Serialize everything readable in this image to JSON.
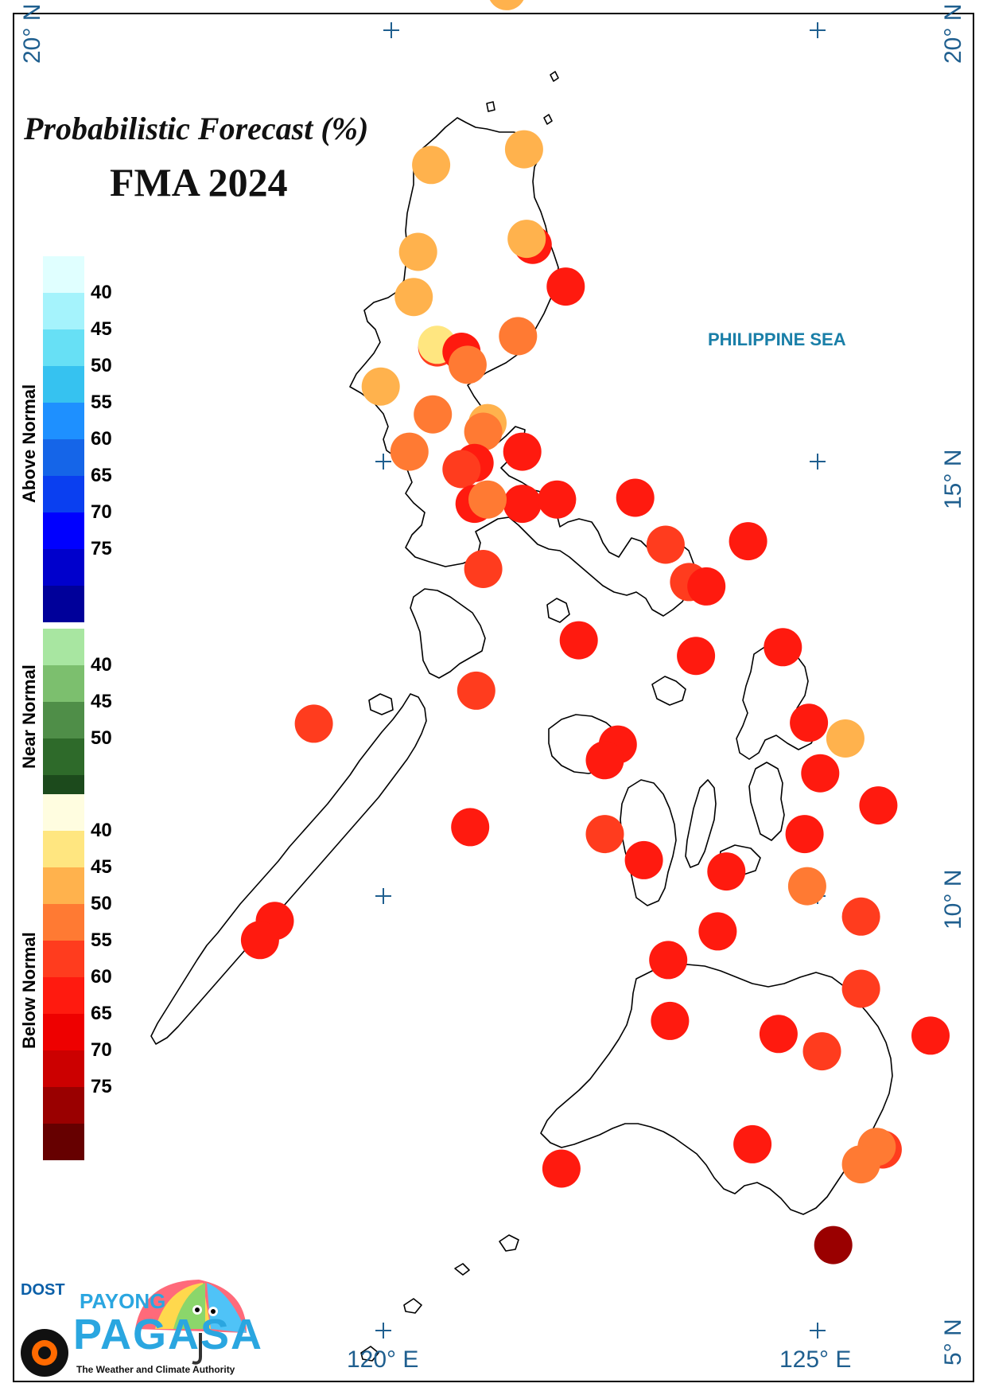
{
  "title": {
    "line1": "Probabilistic Forecast (%)",
    "line2": "FMA 2024"
  },
  "sea_label": "PHILIPPINE SEA",
  "coordinates": {
    "lat_20_left": "20° N",
    "lat_20_right": "20° N",
    "lat_15_right": "15° N",
    "lat_10_right": "10° N",
    "lat_5_right": "5° N",
    "lon_120": "120° E",
    "lon_125": "125° E"
  },
  "legend": {
    "above_normal": {
      "label": "Above Normal",
      "colors": [
        "#e0ffff",
        "#a5f3fc",
        "#67e0f5",
        "#36c2f0",
        "#1e90ff",
        "#1565e8",
        "#0a3ff0",
        "#0000ff",
        "#0000cc",
        "#00009a"
      ],
      "values": [
        "40",
        "45",
        "50",
        "55",
        "60",
        "65",
        "70",
        "75"
      ]
    },
    "near_normal": {
      "label": "Near Normal",
      "colors": [
        "#a8e6a1",
        "#7cbf6e",
        "#4f8e48",
        "#2e6a2a",
        "#1c4a1c"
      ],
      "values": [
        "40",
        "45",
        "50"
      ]
    },
    "below_normal": {
      "label": "Below Normal",
      "colors": [
        "#fffde0",
        "#ffe680",
        "#ffb24d",
        "#ff7a33",
        "#ff3c1e",
        "#ff1a0f",
        "#ee0000",
        "#cc0000",
        "#9a0000",
        "#660000"
      ],
      "values": [
        "40",
        "45",
        "50",
        "55",
        "60",
        "65",
        "70",
        "75"
      ]
    }
  },
  "stations": [
    {
      "lon": 121.42,
      "lat": 20.45,
      "color": "#ffb24d"
    },
    {
      "lon": 121.62,
      "lat": 18.63,
      "color": "#ffb24d"
    },
    {
      "lon": 120.55,
      "lat": 18.45,
      "color": "#ffb24d"
    },
    {
      "lon": 121.72,
      "lat": 17.53,
      "color": "#ff1a0f"
    },
    {
      "lon": 120.4,
      "lat": 17.45,
      "color": "#ffb24d"
    },
    {
      "lon": 121.65,
      "lat": 17.6,
      "color": "#ffb24d"
    },
    {
      "lon": 120.62,
      "lat": 16.35,
      "color": "#ff3c1e"
    },
    {
      "lon": 120.62,
      "lat": 16.38,
      "color": "#ffe680"
    },
    {
      "lon": 122.1,
      "lat": 17.05,
      "color": "#ff1a0f"
    },
    {
      "lon": 120.35,
      "lat": 16.93,
      "color": "#ffb24d"
    },
    {
      "lon": 120.9,
      "lat": 16.3,
      "color": "#ff1a0f"
    },
    {
      "lon": 121.55,
      "lat": 16.48,
      "color": "#ff7a33"
    },
    {
      "lon": 120.97,
      "lat": 16.15,
      "color": "#ff7a33"
    },
    {
      "lon": 119.97,
      "lat": 15.9,
      "color": "#ffb24d"
    },
    {
      "lon": 120.57,
      "lat": 15.58,
      "color": "#ff7a33"
    },
    {
      "lon": 121.2,
      "lat": 15.48,
      "color": "#ffb24d"
    },
    {
      "lon": 121.15,
      "lat": 15.38,
      "color": "#ff7a33"
    },
    {
      "lon": 120.3,
      "lat": 15.15,
      "color": "#ff7a33"
    },
    {
      "lon": 121.6,
      "lat": 15.15,
      "color": "#ff1a0f"
    },
    {
      "lon": 121.05,
      "lat": 15.02,
      "color": "#ff1a0f"
    },
    {
      "lon": 120.9,
      "lat": 14.95,
      "color": "#ff3c1e"
    },
    {
      "lon": 121.05,
      "lat": 14.55,
      "color": "#ff1a0f"
    },
    {
      "lon": 121.6,
      "lat": 14.55,
      "color": "#ff1a0f"
    },
    {
      "lon": 122.0,
      "lat": 14.6,
      "color": "#ff1a0f"
    },
    {
      "lon": 121.2,
      "lat": 14.6,
      "color": "#ff7a33"
    },
    {
      "lon": 122.9,
      "lat": 14.62,
      "color": "#ff1a0f"
    },
    {
      "lon": 123.25,
      "lat": 14.08,
      "color": "#ff3c1e"
    },
    {
      "lon": 124.2,
      "lat": 14.12,
      "color": "#ff1a0f"
    },
    {
      "lon": 121.15,
      "lat": 13.8,
      "color": "#ff3c1e"
    },
    {
      "lon": 123.52,
      "lat": 13.65,
      "color": "#ff3c1e"
    },
    {
      "lon": 123.72,
      "lat": 13.6,
      "color": "#ff1a0f"
    },
    {
      "lon": 122.25,
      "lat": 12.98,
      "color": "#ff1a0f"
    },
    {
      "lon": 123.6,
      "lat": 12.8,
      "color": "#ff1a0f"
    },
    {
      "lon": 124.6,
      "lat": 12.9,
      "color": "#ff1a0f"
    },
    {
      "lon": 121.07,
      "lat": 12.4,
      "color": "#ff3c1e"
    },
    {
      "lon": 119.2,
      "lat": 12.02,
      "color": "#ff3c1e"
    },
    {
      "lon": 124.9,
      "lat": 12.03,
      "color": "#ff1a0f"
    },
    {
      "lon": 125.32,
      "lat": 11.85,
      "color": "#ffb24d"
    },
    {
      "lon": 122.7,
      "lat": 11.78,
      "color": "#ff1a0f"
    },
    {
      "lon": 122.55,
      "lat": 11.6,
      "color": "#ff1a0f"
    },
    {
      "lon": 125.03,
      "lat": 11.45,
      "color": "#ff1a0f"
    },
    {
      "lon": 125.7,
      "lat": 11.08,
      "color": "#ff1a0f"
    },
    {
      "lon": 121.0,
      "lat": 10.83,
      "color": "#ff1a0f"
    },
    {
      "lon": 122.55,
      "lat": 10.75,
      "color": "#ff3c1e"
    },
    {
      "lon": 124.85,
      "lat": 10.75,
      "color": "#ff1a0f"
    },
    {
      "lon": 123.0,
      "lat": 10.45,
      "color": "#ff1a0f"
    },
    {
      "lon": 123.95,
      "lat": 10.32,
      "color": "#ff1a0f"
    },
    {
      "lon": 124.88,
      "lat": 10.15,
      "color": "#ff7a33"
    },
    {
      "lon": 118.75,
      "lat": 9.75,
      "color": "#ff1a0f"
    },
    {
      "lon": 125.5,
      "lat": 9.8,
      "color": "#ff3c1e"
    },
    {
      "lon": 118.58,
      "lat": 9.53,
      "color": "#ff1a0f"
    },
    {
      "lon": 123.85,
      "lat": 9.63,
      "color": "#ff1a0f"
    },
    {
      "lon": 123.28,
      "lat": 9.3,
      "color": "#ff1a0f"
    },
    {
      "lon": 125.5,
      "lat": 8.97,
      "color": "#ff3c1e"
    },
    {
      "lon": 123.3,
      "lat": 8.6,
      "color": "#ff1a0f"
    },
    {
      "lon": 124.55,
      "lat": 8.45,
      "color": "#ff1a0f"
    },
    {
      "lon": 125.05,
      "lat": 8.25,
      "color": "#ff3c1e"
    },
    {
      "lon": 126.3,
      "lat": 8.43,
      "color": "#ff1a0f"
    },
    {
      "lon": 124.25,
      "lat": 7.18,
      "color": "#ff1a0f"
    },
    {
      "lon": 125.75,
      "lat": 7.12,
      "color": "#ff3c1e"
    },
    {
      "lon": 125.68,
      "lat": 7.15,
      "color": "#ff7a33"
    },
    {
      "lon": 125.5,
      "lat": 6.95,
      "color": "#ff7a33"
    },
    {
      "lon": 122.05,
      "lat": 6.9,
      "color": "#ff1a0f"
    },
    {
      "lon": 125.18,
      "lat": 6.02,
      "color": "#9a0000"
    }
  ],
  "logo": {
    "dost": "DOST",
    "payong": "PAYONG",
    "pagasa": "PAGASA",
    "tagline": "The Weather and Climate Authority"
  }
}
